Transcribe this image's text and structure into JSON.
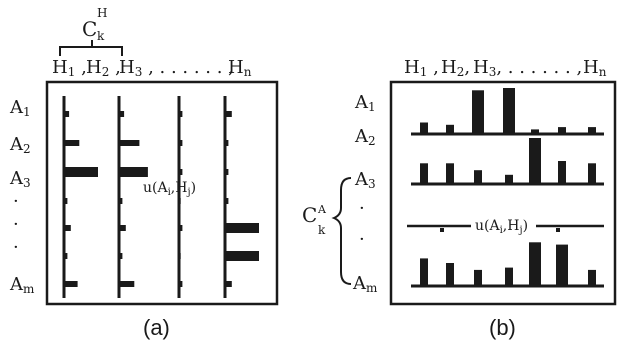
{
  "panel_a": {
    "caption": "(a)",
    "cluster_symbol": "C",
    "cluster_sup": "H",
    "cluster_sub": "k",
    "columns": [
      {
        "main": "H",
        "sub": "1",
        "sep": " ,"
      },
      {
        "main": "H",
        "sub": "2",
        "sep": " ,"
      },
      {
        "main": "H",
        "sub": "3",
        "sep": " , . . . . . . ,"
      },
      {
        "main": "H",
        "sub": "n",
        "sep": ""
      }
    ],
    "rows": [
      {
        "main": "A",
        "sub": "1"
      },
      {
        "main": "A",
        "sub": "2"
      },
      {
        "main": "A",
        "sub": "3"
      },
      {
        "main": "·",
        "sub": ""
      },
      {
        "main": "·",
        "sub": ""
      },
      {
        "main": "·",
        "sub": ""
      },
      {
        "main": "A",
        "sub": "m"
      }
    ],
    "utility_label": {
      "pre": "u(A",
      "i": "i",
      "mid": ",H",
      "j": "j",
      "post": ")"
    }
  },
  "panel_b": {
    "caption": "(b)",
    "cluster_symbol": "C",
    "cluster_sup": "A",
    "cluster_sub": "k",
    "columns": [
      {
        "main": "H",
        "sub": "1",
        "sep": " ,"
      },
      {
        "main": "H",
        "sub": "2",
        "sep": ","
      },
      {
        "main": "H",
        "sub": "3",
        "sep": ", . . . . . . ,"
      },
      {
        "main": "H",
        "sub": "n",
        "sep": ""
      }
    ],
    "rows": [
      {
        "main": "A",
        "sub": "1"
      },
      {
        "main": "A",
        "sub": "2"
      },
      {
        "main": "A",
        "sub": "3"
      },
      {
        "main": "·",
        "sub": ""
      },
      {
        "main": "·",
        "sub": ""
      },
      {
        "main": "A",
        "sub": "m"
      }
    ],
    "utility_label": {
      "pre": "u(A",
      "i": "i",
      "mid": ",H",
      "j": "j",
      "post": ")"
    }
  },
  "bars_a": [
    [
      0.15,
      0.45,
      1.0,
      0.1,
      0.2,
      0.1,
      0.4
    ],
    [
      0.15,
      0.6,
      0.85,
      0.1,
      0.2,
      0.1,
      0.45
    ],
    [
      0.1,
      0.1,
      0.1,
      0.05,
      0.1,
      0.05,
      0.1
    ],
    [
      0.2,
      0.1,
      0.1,
      0.1,
      1.0,
      1.0,
      0.2
    ]
  ],
  "bars_b": [
    [
      0.25,
      0.2,
      0.95,
      1.0,
      0.1,
      0.15,
      0.15
    ],
    [
      0.45,
      0.45,
      0.3,
      0.2,
      1.0,
      0.5,
      0.45
    ],
    [
      0.6,
      0.5,
      0.35,
      0.4,
      0.95,
      0.9,
      0.35
    ]
  ]
}
